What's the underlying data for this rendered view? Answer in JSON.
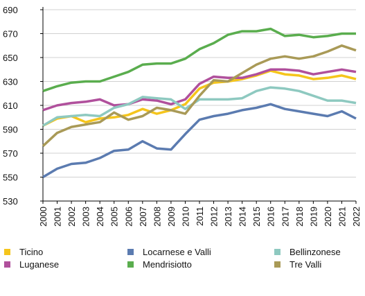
{
  "chart_data": {
    "type": "line",
    "x": [
      2000,
      2001,
      2002,
      2003,
      2004,
      2005,
      2006,
      2007,
      2008,
      2009,
      2010,
      2011,
      2012,
      2013,
      2014,
      2015,
      2016,
      2017,
      2018,
      2019,
      2020,
      2021,
      2022
    ],
    "xlim": [
      2000,
      2022
    ],
    "ylim": [
      530,
      690
    ],
    "yticks": [
      530,
      550,
      570,
      590,
      610,
      630,
      650,
      670,
      690
    ],
    "grid": true,
    "series": [
      {
        "name": "Ticino",
        "color": "#f5c51c",
        "values": [
          593,
          599,
          601,
          596,
          599,
          600,
          602,
          607,
          603,
          606,
          611,
          624,
          629,
          630,
          632,
          635,
          639,
          636,
          635,
          632,
          633,
          635,
          632
        ]
      },
      {
        "name": "Luganese",
        "color": "#b0509c",
        "values": [
          606,
          610,
          612,
          613,
          615,
          610,
          611,
          615,
          614,
          611,
          615,
          628,
          634,
          633,
          633,
          636,
          640,
          640,
          639,
          636,
          638,
          640,
          638
        ]
      },
      {
        "name": "Locarnese e Valli",
        "color": "#5b7bb0",
        "values": [
          550,
          557,
          561,
          562,
          566,
          572,
          573,
          580,
          574,
          573,
          586,
          598,
          601,
          603,
          606,
          608,
          611,
          607,
          605,
          603,
          601,
          605,
          599
        ]
      },
      {
        "name": "Mendrisiotto",
        "color": "#5aad4e",
        "values": [
          622,
          626,
          629,
          630,
          630,
          634,
          638,
          644,
          645,
          645,
          649,
          657,
          662,
          669,
          672,
          672,
          674,
          668,
          669,
          667,
          668,
          670,
          670
        ]
      },
      {
        "name": "Bellinzonese",
        "color": "#8ec9c0",
        "values": [
          593,
          600,
          601,
          602,
          601,
          608,
          611,
          617,
          616,
          615,
          607,
          615,
          615,
          615,
          616,
          622,
          625,
          624,
          622,
          618,
          614,
          614,
          612
        ]
      },
      {
        "name": "Tre Valli",
        "color": "#a99a57",
        "values": [
          576,
          587,
          592,
          594,
          596,
          604,
          598,
          601,
          608,
          606,
          603,
          618,
          631,
          630,
          637,
          644,
          649,
          651,
          649,
          651,
          655,
          660,
          656
        ]
      }
    ]
  }
}
